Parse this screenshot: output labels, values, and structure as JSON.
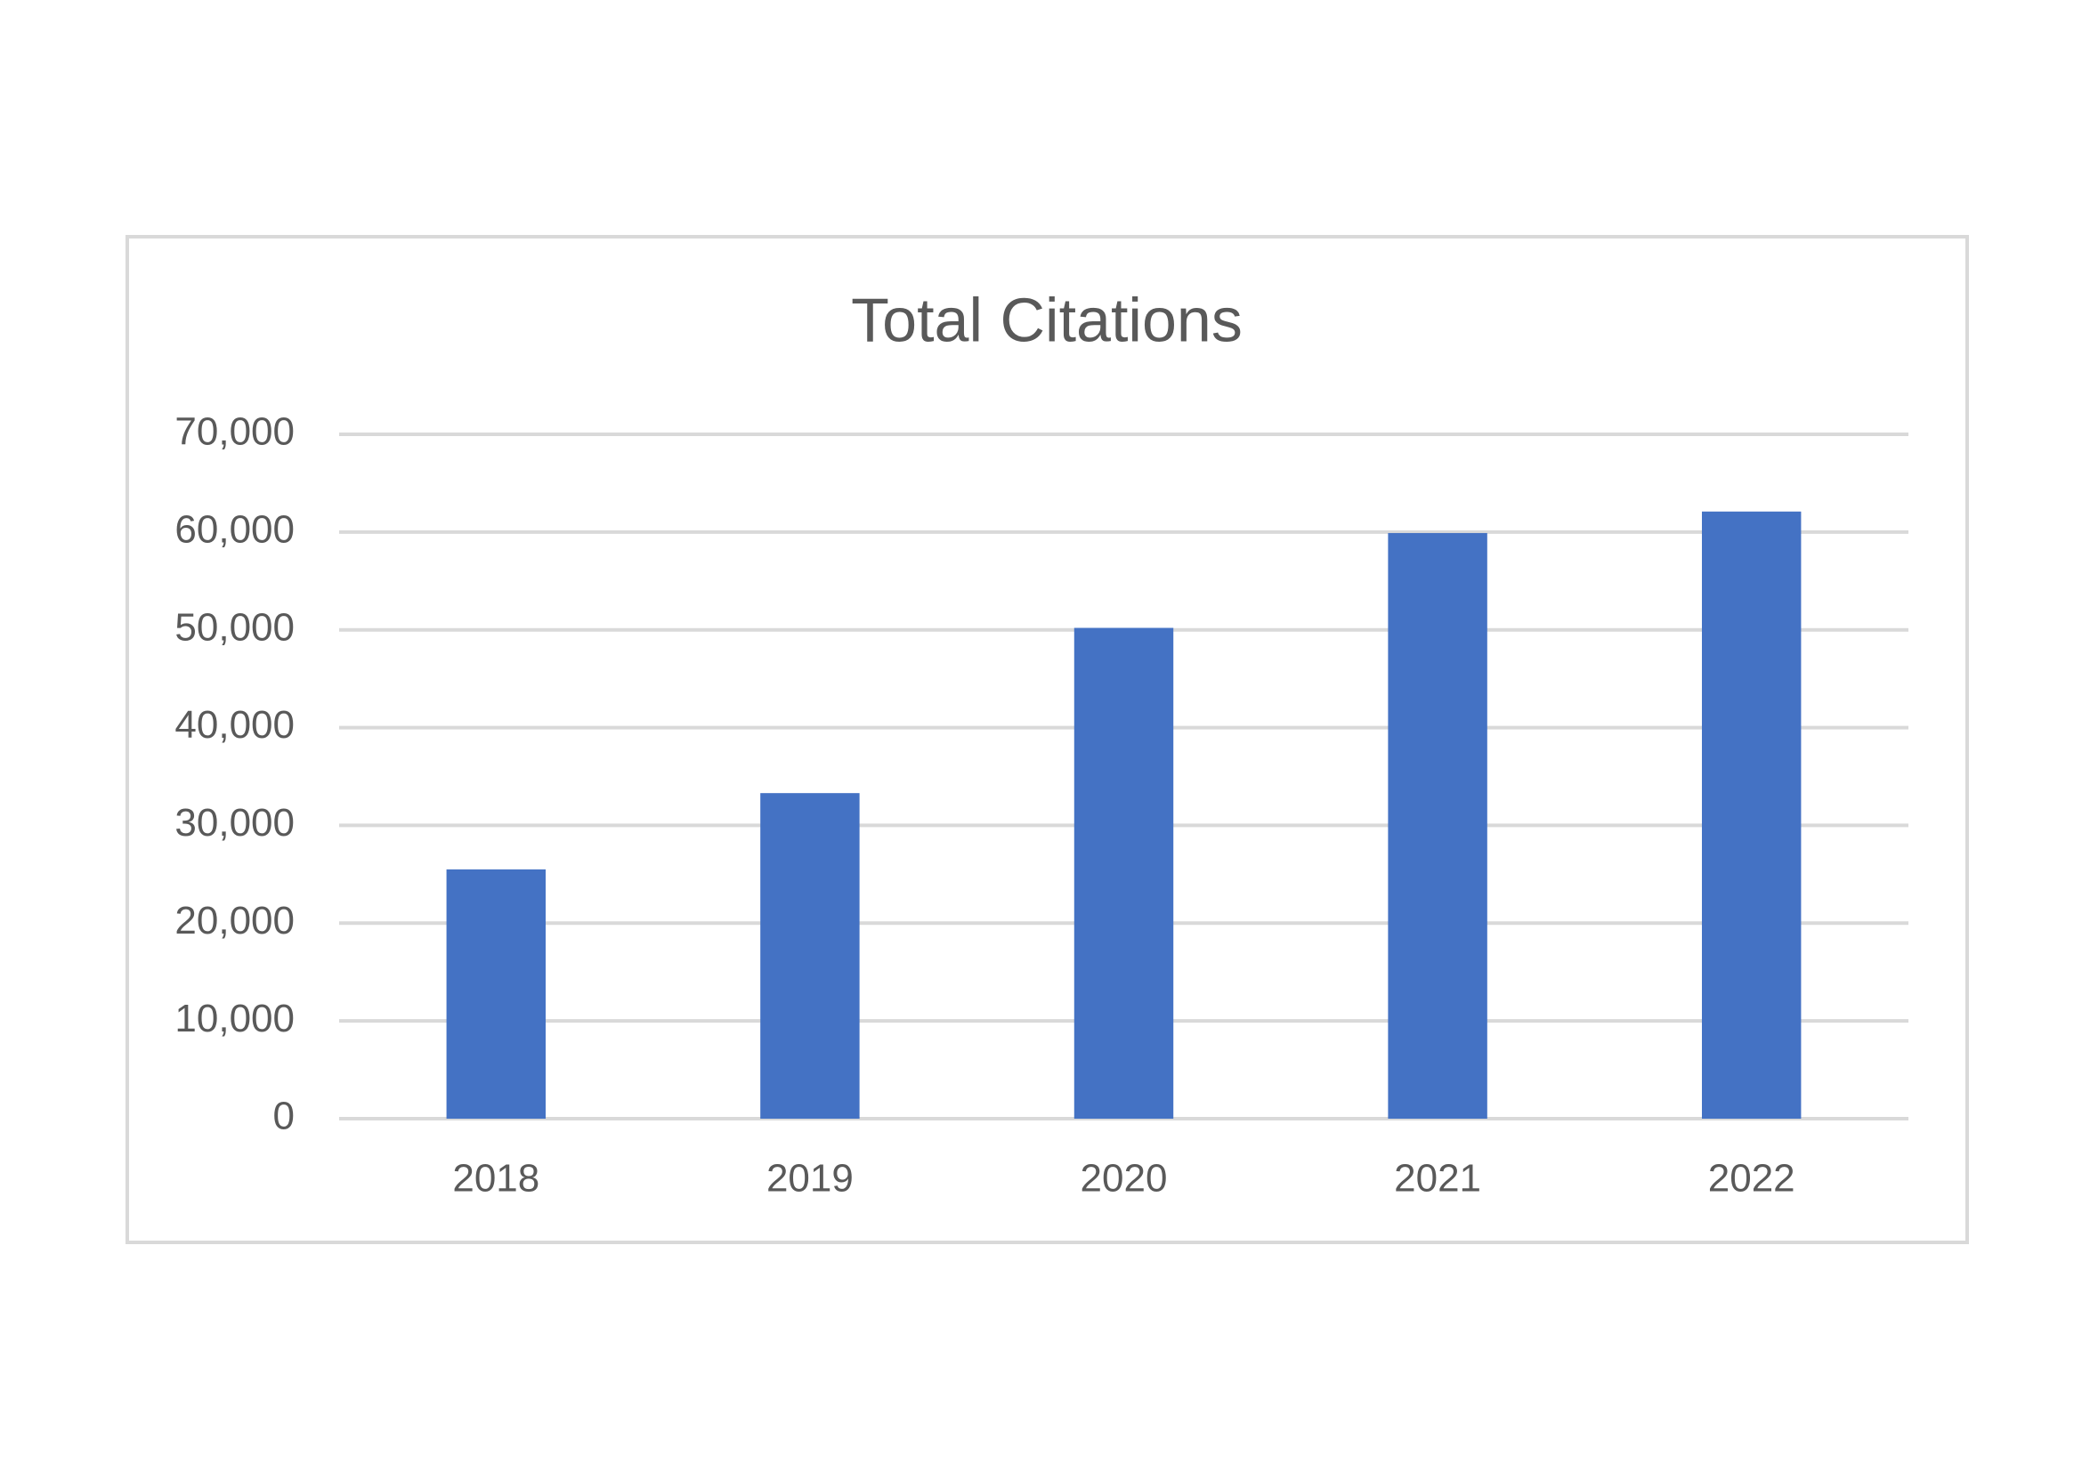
{
  "chart_data": {
    "type": "bar",
    "title": "Total Citations",
    "categories": [
      "2018",
      "2019",
      "2020",
      "2021",
      "2022"
    ],
    "values": [
      25500,
      33300,
      50200,
      59900,
      62100
    ],
    "color": "#4472c4",
    "ylim": [
      0,
      70000
    ],
    "yticks": [
      0,
      {
        "value": 10000,
        "label": "10,000"
      },
      {
        "value": 20000,
        "label": "20,000"
      },
      {
        "value": 30000,
        "label": "30,000"
      },
      {
        "value": 40000,
        "label": "40,000"
      },
      {
        "value": 50000,
        "label": "50,000"
      },
      {
        "value": 60000,
        "label": "60,000"
      },
      {
        "value": 70000,
        "label": "70,000"
      }
    ],
    "grid": true
  }
}
